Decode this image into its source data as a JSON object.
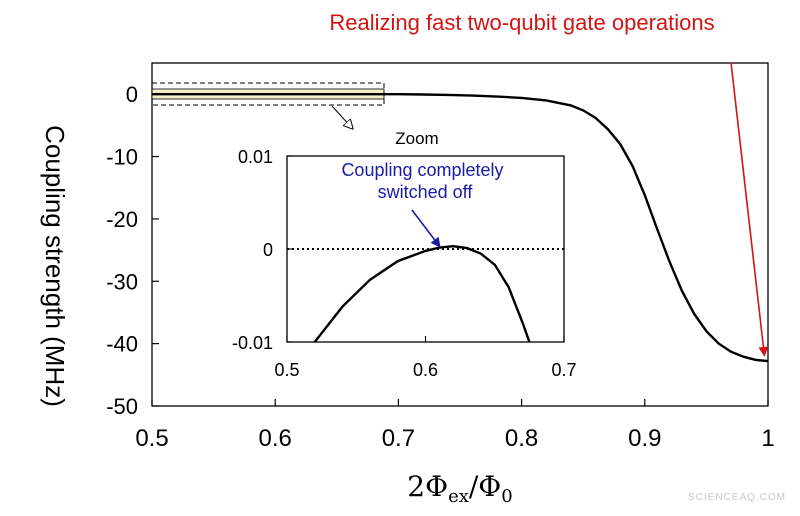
{
  "watermark": "SCIENCEAQ.COM",
  "colors": {
    "curve": "#000000",
    "annotation_red": "#d21414",
    "annotation_blue": "#1a1aa8",
    "highlight_fill": "#f4f1c4"
  },
  "chart_data": [
    {
      "type": "line",
      "title": "",
      "xlabel_parts": {
        "base": "2Φ",
        "sub1": "ex",
        "mid": "/Φ",
        "sub2": "0"
      },
      "ylabel": "Coupling strength (MHz)",
      "xlim": [
        0.5,
        1.0
      ],
      "ylim": [
        -50,
        5
      ],
      "xticks": [
        0.5,
        0.6,
        0.7,
        0.8,
        0.9,
        1.0
      ],
      "xtick_labels": [
        "0.5",
        "0.6",
        "0.7",
        "0.8",
        "0.9",
        "1"
      ],
      "yticks": [
        0,
        -10,
        -20,
        -30,
        -40,
        -50
      ],
      "ytick_labels": [
        "0",
        "-10",
        "-20",
        "-30",
        "-40",
        "-50"
      ],
      "grid": false,
      "series": [
        {
          "x": [
            0.5,
            0.55,
            0.6,
            0.65,
            0.7,
            0.72,
            0.74,
            0.76,
            0.78,
            0.8,
            0.82,
            0.84,
            0.85,
            0.86,
            0.87,
            0.88,
            0.89,
            0.9,
            0.91,
            0.92,
            0.93,
            0.94,
            0.95,
            0.96,
            0.97,
            0.98,
            0.99,
            1.0
          ],
          "y": [
            0,
            0,
            0,
            0,
            0,
            -0.05,
            -0.12,
            -0.22,
            -0.38,
            -0.6,
            -1.0,
            -1.8,
            -2.6,
            -3.8,
            -5.6,
            -8.0,
            -11.5,
            -16.2,
            -21.6,
            -26.8,
            -31.5,
            -35.2,
            -38.0,
            -40.0,
            -41.3,
            -42.1,
            -42.6,
            -42.8
          ]
        }
      ],
      "annotations": [
        {
          "text": "Realizing fast two-qubit gate operations",
          "arrow_from": [
            0.97,
            3.5
          ],
          "arrow_to": [
            0.997,
            -41.8
          ]
        }
      ],
      "zoom_region": {
        "x": [
          0.5,
          0.7
        ],
        "y": [
          -0.01,
          0.01
        ]
      }
    },
    {
      "type": "line",
      "title": "Zoom",
      "xlim": [
        0.5,
        0.7
      ],
      "ylim": [
        -0.01,
        0.01
      ],
      "xticks": [
        0.5,
        0.6,
        0.7
      ],
      "xtick_labels": [
        "0.5",
        "0.6",
        "0.7"
      ],
      "yticks": [
        0.01,
        0,
        -0.01
      ],
      "ytick_labels": [
        "0.01",
        "0",
        "-0.01"
      ],
      "reference_line": {
        "y": 0,
        "style": "dotted"
      },
      "series": [
        {
          "x": [
            0.52,
            0.54,
            0.56,
            0.58,
            0.6,
            0.61,
            0.62,
            0.63,
            0.64,
            0.65,
            0.66,
            0.67,
            0.675
          ],
          "y": [
            -0.0101,
            -0.0062,
            -0.0033,
            -0.0013,
            -0.0002,
            0.00015,
            0.0003,
            0.0001,
            -0.0005,
            -0.0017,
            -0.0041,
            -0.0079,
            -0.0103
          ]
        }
      ],
      "annotations": [
        {
          "text_lines": [
            "Coupling completely",
            "switched off"
          ],
          "arrow_to": [
            0.61,
            0.0001
          ]
        }
      ]
    }
  ]
}
